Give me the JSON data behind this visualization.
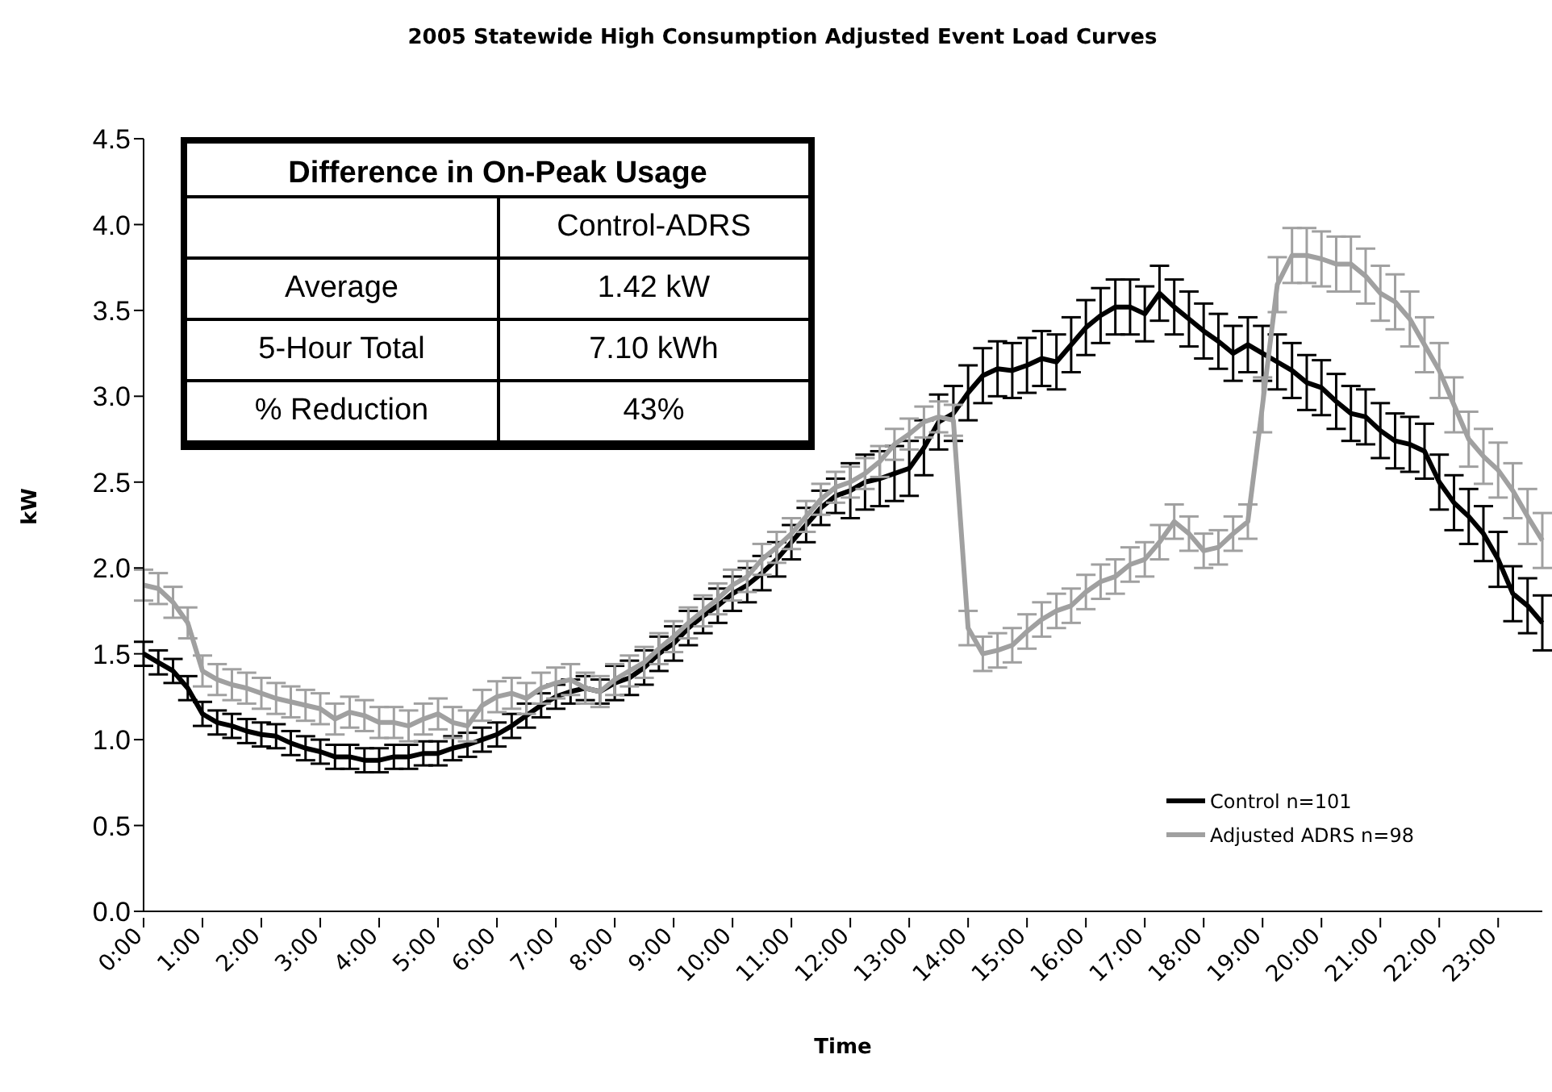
{
  "chart_data": {
    "type": "line",
    "title": "2005 Statewide High Consumption Adjusted Event Load Curves",
    "xlabel": "Time",
    "ylabel": "kW",
    "categories": [
      "0:00",
      null,
      null,
      null,
      "1:00",
      null,
      null,
      null,
      "2:00",
      null,
      null,
      null,
      "3:00",
      null,
      null,
      null,
      "4:00",
      null,
      null,
      null,
      "5:00",
      null,
      null,
      null,
      "6:00",
      null,
      null,
      null,
      "7:00",
      null,
      null,
      null,
      "8:00",
      null,
      null,
      null,
      "9:00",
      null,
      null,
      null,
      "10:00",
      null,
      null,
      null,
      "11:00",
      null,
      null,
      null,
      "12:00",
      null,
      null,
      null,
      "13:00",
      null,
      null,
      null,
      "14:00",
      null,
      null,
      null,
      "15:00",
      null,
      null,
      null,
      "16:00",
      null,
      null,
      null,
      "17:00",
      null,
      null,
      null,
      "18:00",
      null,
      null,
      null,
      "19:00",
      null,
      null,
      null,
      "20:00",
      null,
      null,
      null,
      "21:00",
      null,
      null,
      null,
      "22:00",
      null,
      null,
      null,
      "23:00",
      null,
      null,
      null
    ],
    "series": [
      {
        "name": "Control n=101",
        "color": "#000000",
        "values": [
          1.5,
          1.45,
          1.4,
          1.3,
          1.15,
          1.1,
          1.08,
          1.05,
          1.03,
          1.02,
          0.98,
          0.95,
          0.93,
          0.9,
          0.9,
          0.88,
          0.88,
          0.9,
          0.9,
          0.92,
          0.92,
          0.95,
          0.97,
          1.0,
          1.03,
          1.08,
          1.14,
          1.2,
          1.25,
          1.28,
          1.3,
          1.28,
          1.33,
          1.36,
          1.42,
          1.5,
          1.56,
          1.65,
          1.72,
          1.78,
          1.85,
          1.9,
          1.97,
          2.05,
          2.15,
          2.25,
          2.35,
          2.42,
          2.45,
          2.5,
          2.52,
          2.55,
          2.58,
          2.7,
          2.85,
          2.9,
          3.02,
          3.12,
          3.16,
          3.15,
          3.18,
          3.22,
          3.2,
          3.3,
          3.4,
          3.47,
          3.52,
          3.52,
          3.48,
          3.6,
          3.52,
          3.45,
          3.38,
          3.32,
          3.25,
          3.3,
          3.25,
          3.2,
          3.15,
          3.08,
          3.05,
          2.97,
          2.9,
          2.88,
          2.8,
          2.74,
          2.72,
          2.68,
          2.5,
          2.38,
          2.3,
          2.2,
          2.05,
          1.85,
          1.78,
          1.68
        ],
        "errors": [
          0.07,
          0.07,
          0.07,
          0.07,
          0.07,
          0.07,
          0.07,
          0.07,
          0.07,
          0.07,
          0.07,
          0.07,
          0.07,
          0.07,
          0.07,
          0.07,
          0.07,
          0.07,
          0.07,
          0.07,
          0.07,
          0.07,
          0.07,
          0.07,
          0.07,
          0.07,
          0.07,
          0.07,
          0.07,
          0.07,
          0.07,
          0.07,
          0.1,
          0.1,
          0.1,
          0.1,
          0.1,
          0.1,
          0.1,
          0.1,
          0.1,
          0.1,
          0.1,
          0.1,
          0.1,
          0.1,
          0.1,
          0.1,
          0.16,
          0.16,
          0.16,
          0.16,
          0.16,
          0.16,
          0.16,
          0.16,
          0.16,
          0.16,
          0.16,
          0.16,
          0.16,
          0.16,
          0.16,
          0.16,
          0.16,
          0.16,
          0.16,
          0.16,
          0.16,
          0.16,
          0.16,
          0.16,
          0.16,
          0.16,
          0.16,
          0.16,
          0.16,
          0.16,
          0.16,
          0.16,
          0.16,
          0.16,
          0.16,
          0.16,
          0.16,
          0.16,
          0.16,
          0.16,
          0.16,
          0.16,
          0.16,
          0.16,
          0.16,
          0.16,
          0.16,
          0.16
        ]
      },
      {
        "name": "Adjusted ADRS n=98",
        "color": "#a0a0a0",
        "values": [
          1.9,
          1.88,
          1.8,
          1.68,
          1.4,
          1.35,
          1.32,
          1.3,
          1.27,
          1.24,
          1.22,
          1.2,
          1.18,
          1.12,
          1.16,
          1.14,
          1.1,
          1.1,
          1.08,
          1.12,
          1.15,
          1.1,
          1.08,
          1.2,
          1.25,
          1.27,
          1.24,
          1.3,
          1.33,
          1.35,
          1.3,
          1.28,
          1.35,
          1.4,
          1.45,
          1.53,
          1.6,
          1.68,
          1.75,
          1.82,
          1.9,
          1.95,
          2.05,
          2.12,
          2.2,
          2.3,
          2.4,
          2.47,
          2.5,
          2.55,
          2.62,
          2.72,
          2.78,
          2.85,
          2.88,
          2.86,
          1.65,
          1.5,
          1.52,
          1.55,
          1.63,
          1.7,
          1.75,
          1.78,
          1.86,
          1.92,
          1.95,
          2.02,
          2.05,
          2.15,
          2.27,
          2.2,
          2.1,
          2.12,
          2.2,
          2.27,
          2.95,
          3.65,
          3.82,
          3.82,
          3.8,
          3.77,
          3.77,
          3.7,
          3.6,
          3.55,
          3.45,
          3.3,
          3.15,
          2.95,
          2.75,
          2.65,
          2.57,
          2.45,
          2.3,
          2.16
        ],
        "errors": [
          0.09,
          0.09,
          0.09,
          0.09,
          0.09,
          0.09,
          0.09,
          0.09,
          0.09,
          0.09,
          0.09,
          0.09,
          0.09,
          0.09,
          0.09,
          0.09,
          0.09,
          0.09,
          0.09,
          0.09,
          0.09,
          0.09,
          0.09,
          0.09,
          0.09,
          0.09,
          0.09,
          0.09,
          0.09,
          0.09,
          0.09,
          0.09,
          0.09,
          0.09,
          0.09,
          0.09,
          0.09,
          0.09,
          0.09,
          0.09,
          0.09,
          0.09,
          0.09,
          0.09,
          0.09,
          0.09,
          0.09,
          0.09,
          0.09,
          0.09,
          0.09,
          0.09,
          0.09,
          0.09,
          0.09,
          0.09,
          0.1,
          0.1,
          0.1,
          0.1,
          0.1,
          0.1,
          0.1,
          0.1,
          0.1,
          0.1,
          0.1,
          0.1,
          0.1,
          0.1,
          0.1,
          0.1,
          0.1,
          0.1,
          0.1,
          0.1,
          0.16,
          0.16,
          0.16,
          0.16,
          0.16,
          0.16,
          0.16,
          0.16,
          0.16,
          0.16,
          0.16,
          0.16,
          0.16,
          0.16,
          0.16,
          0.16,
          0.16,
          0.16,
          0.16,
          0.16
        ]
      }
    ],
    "ylim": [
      0,
      4.5
    ],
    "yticks": [
      {
        "value": 0,
        "label": "0.0"
      },
      0.5,
      {
        "value": 1,
        "label": "1.0"
      },
      1.5,
      {
        "value": 2,
        "label": "2.0"
      },
      2.5,
      {
        "value": 3,
        "label": "3.0"
      },
      3.5,
      {
        "value": 4,
        "label": "4.0"
      },
      4.5
    ],
    "grid": false,
    "legend": "bottom right",
    "marker": "none",
    "line_style": "solid",
    "annotations": [
      "Difference in On-Peak Usage",
      "Control-ADRS",
      "Average",
      "1.42 kW",
      "5-Hour Total",
      "7.10 kWh",
      "% Reduction",
      "43%"
    ]
  }
}
